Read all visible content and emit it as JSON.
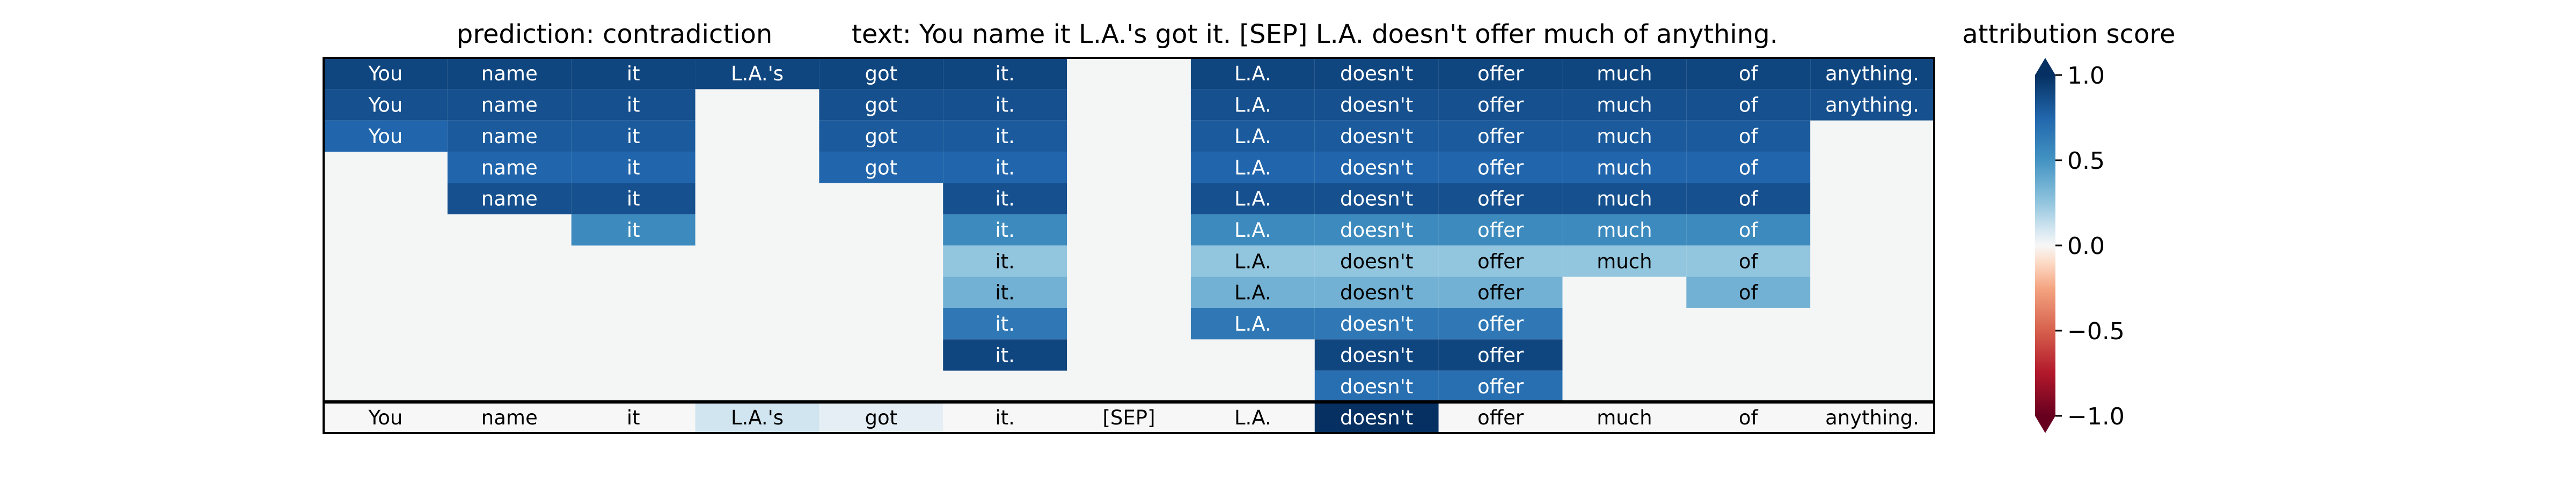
{
  "chart_data": {
    "type": "heatmap",
    "title_prediction": "prediction:  contradiction",
    "title_text": "text:  You name it L.A.'s got it. [SEP] L.A. doesn't offer much of anything.",
    "colorbar_title": "attribution score",
    "colorbar_ticks": [
      "1.0",
      "0.5",
      "0.0",
      "−0.5",
      "−1.0"
    ],
    "colorbar_range": [
      -1.0,
      1.0
    ],
    "colormap": "RdBu",
    "tokens": [
      "You",
      "name",
      "it",
      "L.A.'s",
      "got",
      "it.",
      "[SEP]",
      "L.A.",
      "doesn't",
      "offer",
      "much",
      "of",
      "anything."
    ],
    "bottom_scores": [
      0.0,
      0.0,
      0.0,
      0.1,
      0.05,
      0.0,
      0.0,
      0.0,
      1.0,
      0.0,
      0.0,
      0.0,
      0.0
    ],
    "rows": [
      [
        0.9,
        0.9,
        0.9,
        0.9,
        0.9,
        0.9,
        null,
        0.9,
        0.9,
        0.9,
        0.9,
        0.9,
        0.9
      ],
      [
        0.85,
        0.85,
        0.85,
        null,
        0.85,
        0.85,
        null,
        0.85,
        0.85,
        0.85,
        0.85,
        0.85,
        0.85
      ],
      [
        0.75,
        0.8,
        0.8,
        null,
        0.8,
        0.8,
        null,
        0.8,
        0.8,
        0.8,
        0.8,
        0.8,
        null
      ],
      [
        null,
        0.75,
        0.75,
        null,
        0.75,
        0.75,
        null,
        0.75,
        0.75,
        0.75,
        0.75,
        0.75,
        null
      ],
      [
        null,
        0.85,
        0.85,
        null,
        null,
        0.85,
        null,
        0.85,
        0.85,
        0.85,
        0.85,
        0.85,
        null
      ],
      [
        null,
        null,
        0.55,
        null,
        null,
        0.55,
        null,
        0.55,
        0.55,
        0.55,
        0.55,
        0.55,
        null
      ],
      [
        null,
        null,
        null,
        null,
        null,
        0.25,
        null,
        0.25,
        0.25,
        0.25,
        0.25,
        0.25,
        null
      ],
      [
        null,
        null,
        null,
        null,
        null,
        0.35,
        null,
        0.35,
        0.35,
        0.35,
        null,
        0.35,
        null
      ],
      [
        null,
        null,
        null,
        null,
        null,
        0.65,
        null,
        0.65,
        0.65,
        0.65,
        null,
        null,
        null
      ],
      [
        null,
        null,
        null,
        null,
        null,
        0.9,
        null,
        null,
        0.9,
        0.9,
        null,
        null,
        null
      ],
      [
        null,
        null,
        null,
        null,
        null,
        null,
        null,
        null,
        0.7,
        0.7,
        null,
        null,
        null
      ]
    ]
  }
}
